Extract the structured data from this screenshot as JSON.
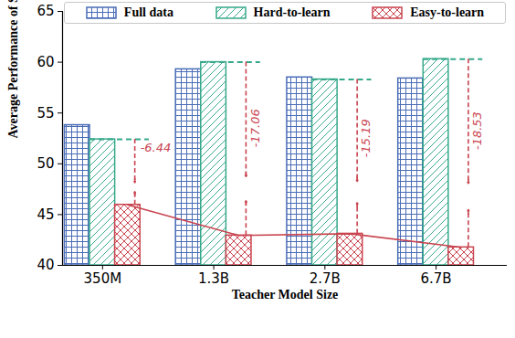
{
  "chart_data": {
    "type": "bar",
    "xlabel": "Teacher Model Size",
    "ylabel": "Average Performance of Student (%)",
    "categories": [
      "350M",
      "1.3B",
      "2.7B",
      "6.7B"
    ],
    "series": [
      {
        "name": "Full data",
        "color": "#4a6cb6",
        "values": [
          53.8,
          59.3,
          58.5,
          58.4
        ]
      },
      {
        "name": "Hard-to-learn",
        "color": "#35a98a",
        "values": [
          52.4,
          60.0,
          58.3,
          60.3
        ]
      },
      {
        "name": "Easy-to-learn",
        "color": "#c9444f",
        "values": [
          45.96,
          42.94,
          43.11,
          41.77
        ]
      }
    ],
    "ylim": [
      40,
      65
    ],
    "yticks": [
      40,
      45,
      50,
      55,
      60,
      65
    ],
    "legend": "top",
    "annotations": [
      "-6.44",
      "-17.06",
      "-15.19",
      "-18.53"
    ]
  }
}
